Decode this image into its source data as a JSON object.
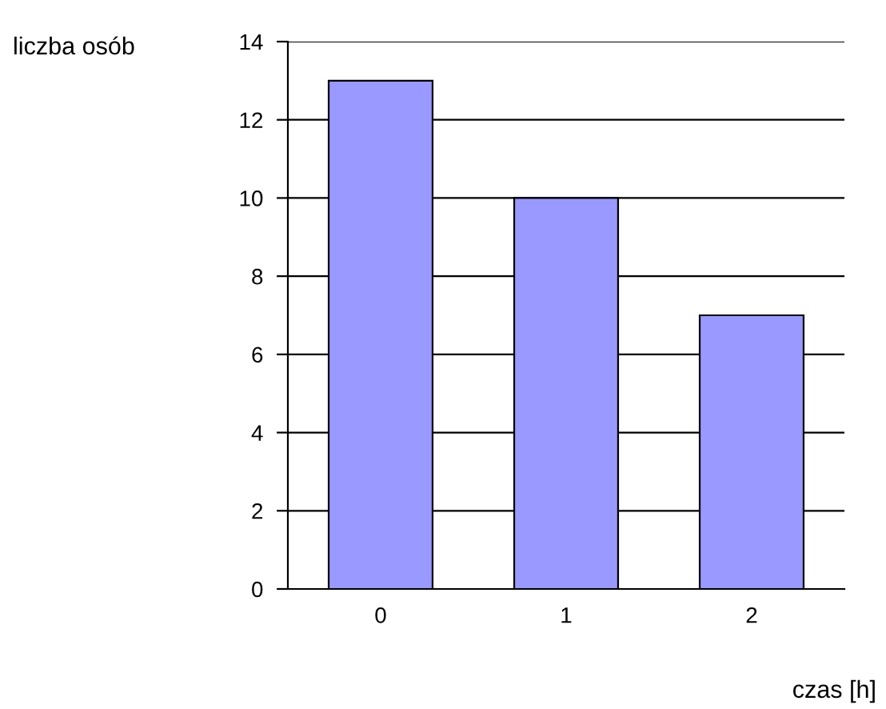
{
  "chart_data": {
    "type": "bar",
    "xlabel": "czas [h]",
    "ylabel": "liczba osób",
    "categories": [
      "0",
      "1",
      "2"
    ],
    "values": [
      13,
      10,
      7
    ],
    "color": "#9999ff",
    "ylim": [
      0,
      14
    ],
    "yticks": [
      0,
      2,
      4,
      6,
      8,
      10,
      12,
      14
    ],
    "grid": "y"
  }
}
